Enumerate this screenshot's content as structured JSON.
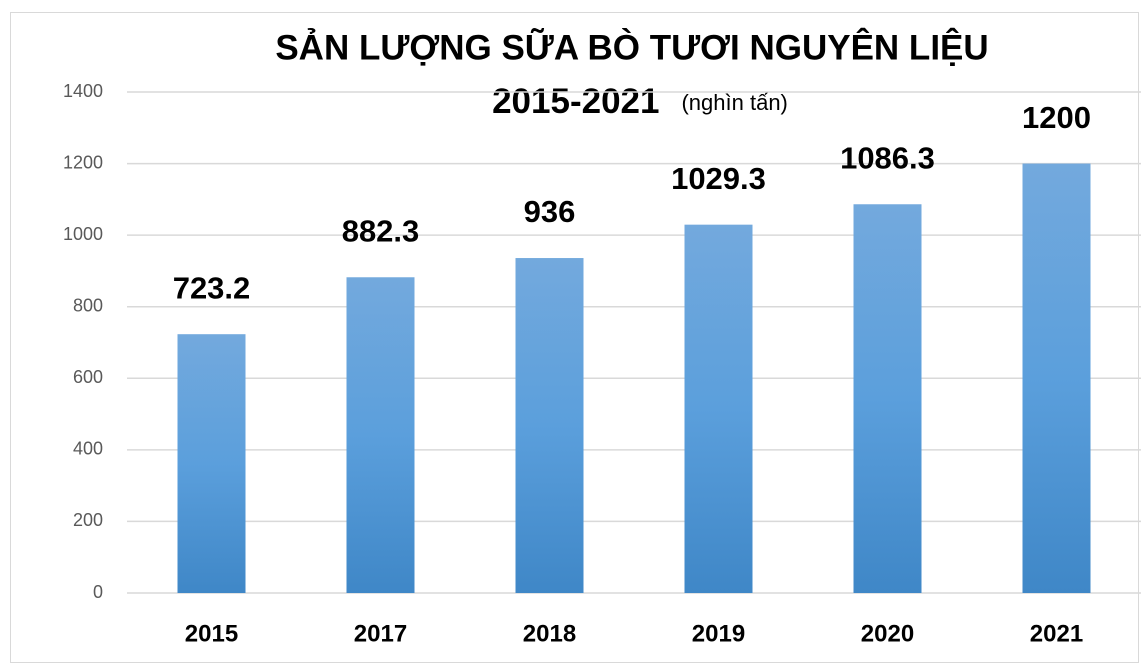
{
  "chart_data": {
    "type": "bar",
    "title": "SẢN LƯỢNG SỮA BÒ TƯƠI NGUYÊN LIỆU",
    "subtitle": "2015-2021",
    "unit_label": "(nghìn tấn)",
    "categories": [
      "2015",
      "2017",
      "2018",
      "2019",
      "2020",
      "2021"
    ],
    "values": [
      723.2,
      882.3,
      936,
      1029.3,
      1086.3,
      1200
    ],
    "color": "#5b9bd5",
    "ylim": [
      0,
      1400
    ],
    "yticks": [
      0,
      200,
      400,
      600,
      800,
      1000,
      1200,
      1400
    ],
    "grid": true
  }
}
